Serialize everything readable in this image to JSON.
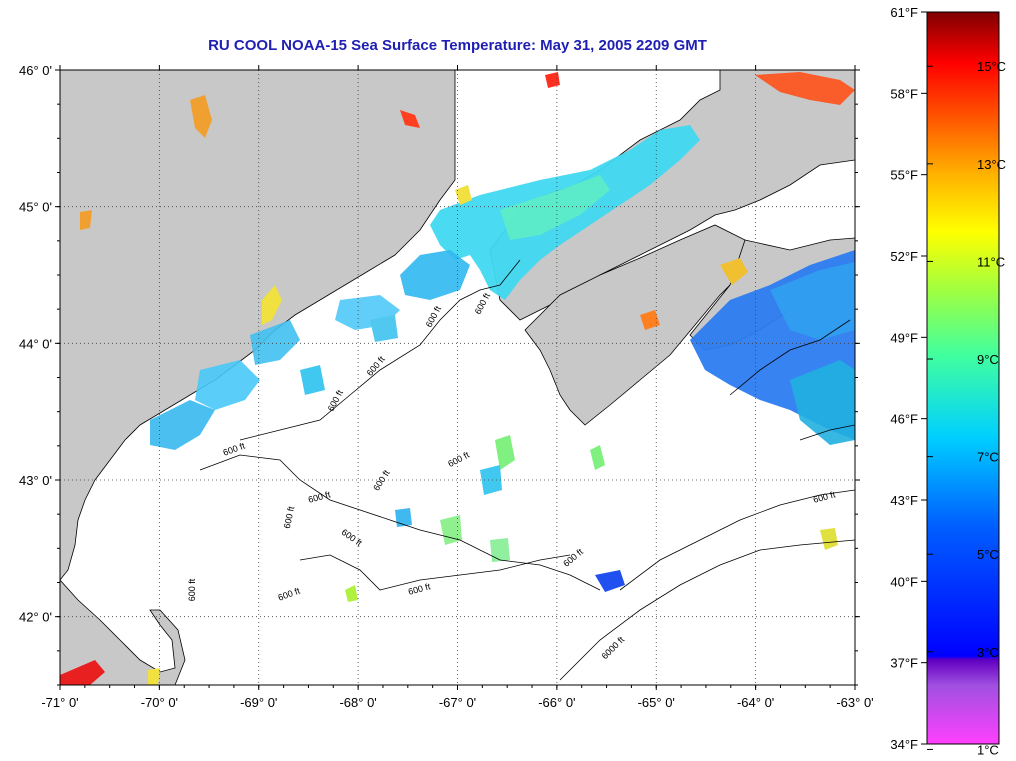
{
  "title": "RU COOL  NOAA-15  Sea Surface Temperature:  May 31, 2005 2209 GMT",
  "map": {
    "lon_range": [
      -71,
      -63
    ],
    "lat_range": [
      41.5,
      46
    ],
    "grid": "dotted",
    "land_color": "#c8c8c8",
    "no_data_color": "#ffffff",
    "lon_ticks": [
      "-71° 0'",
      "-70° 0'",
      "-69° 0'",
      "-68° 0'",
      "-67° 0'",
      "-66° 0'",
      "-65° 0'",
      "-64° 0'",
      "-63° 0'"
    ],
    "lat_ticks": [
      "46° 0'",
      "45° 0'",
      "44° 0'",
      "43° 0'",
      "42° 0'"
    ],
    "contour_labels": [
      "600 ft",
      "600 ft",
      "600 ft",
      "600 ft",
      "600 ft",
      "600 ft",
      "600 ft",
      "600 ft",
      "600 ft",
      "600 ft",
      "600 ft",
      "600 ft",
      "600 ft",
      "600 ft",
      "600 ft",
      "6000 ft"
    ]
  },
  "colorbar": {
    "fahrenheit_labels": [
      "61°F",
      "58°F",
      "55°F",
      "52°F",
      "49°F",
      "46°F",
      "43°F",
      "40°F",
      "37°F",
      "34°F"
    ],
    "celsius_labels": [
      "15°C",
      "13°C",
      "11°C",
      "9°C",
      "7°C",
      "5°C",
      "3°C",
      "1°C"
    ],
    "colors": [
      "#8b0000",
      "#ff0000",
      "#ff8000",
      "#ffff00",
      "#80ff00",
      "#00ffff",
      "#0080ff",
      "#0000ff",
      "#8040c0",
      "#ff40ff"
    ]
  }
}
